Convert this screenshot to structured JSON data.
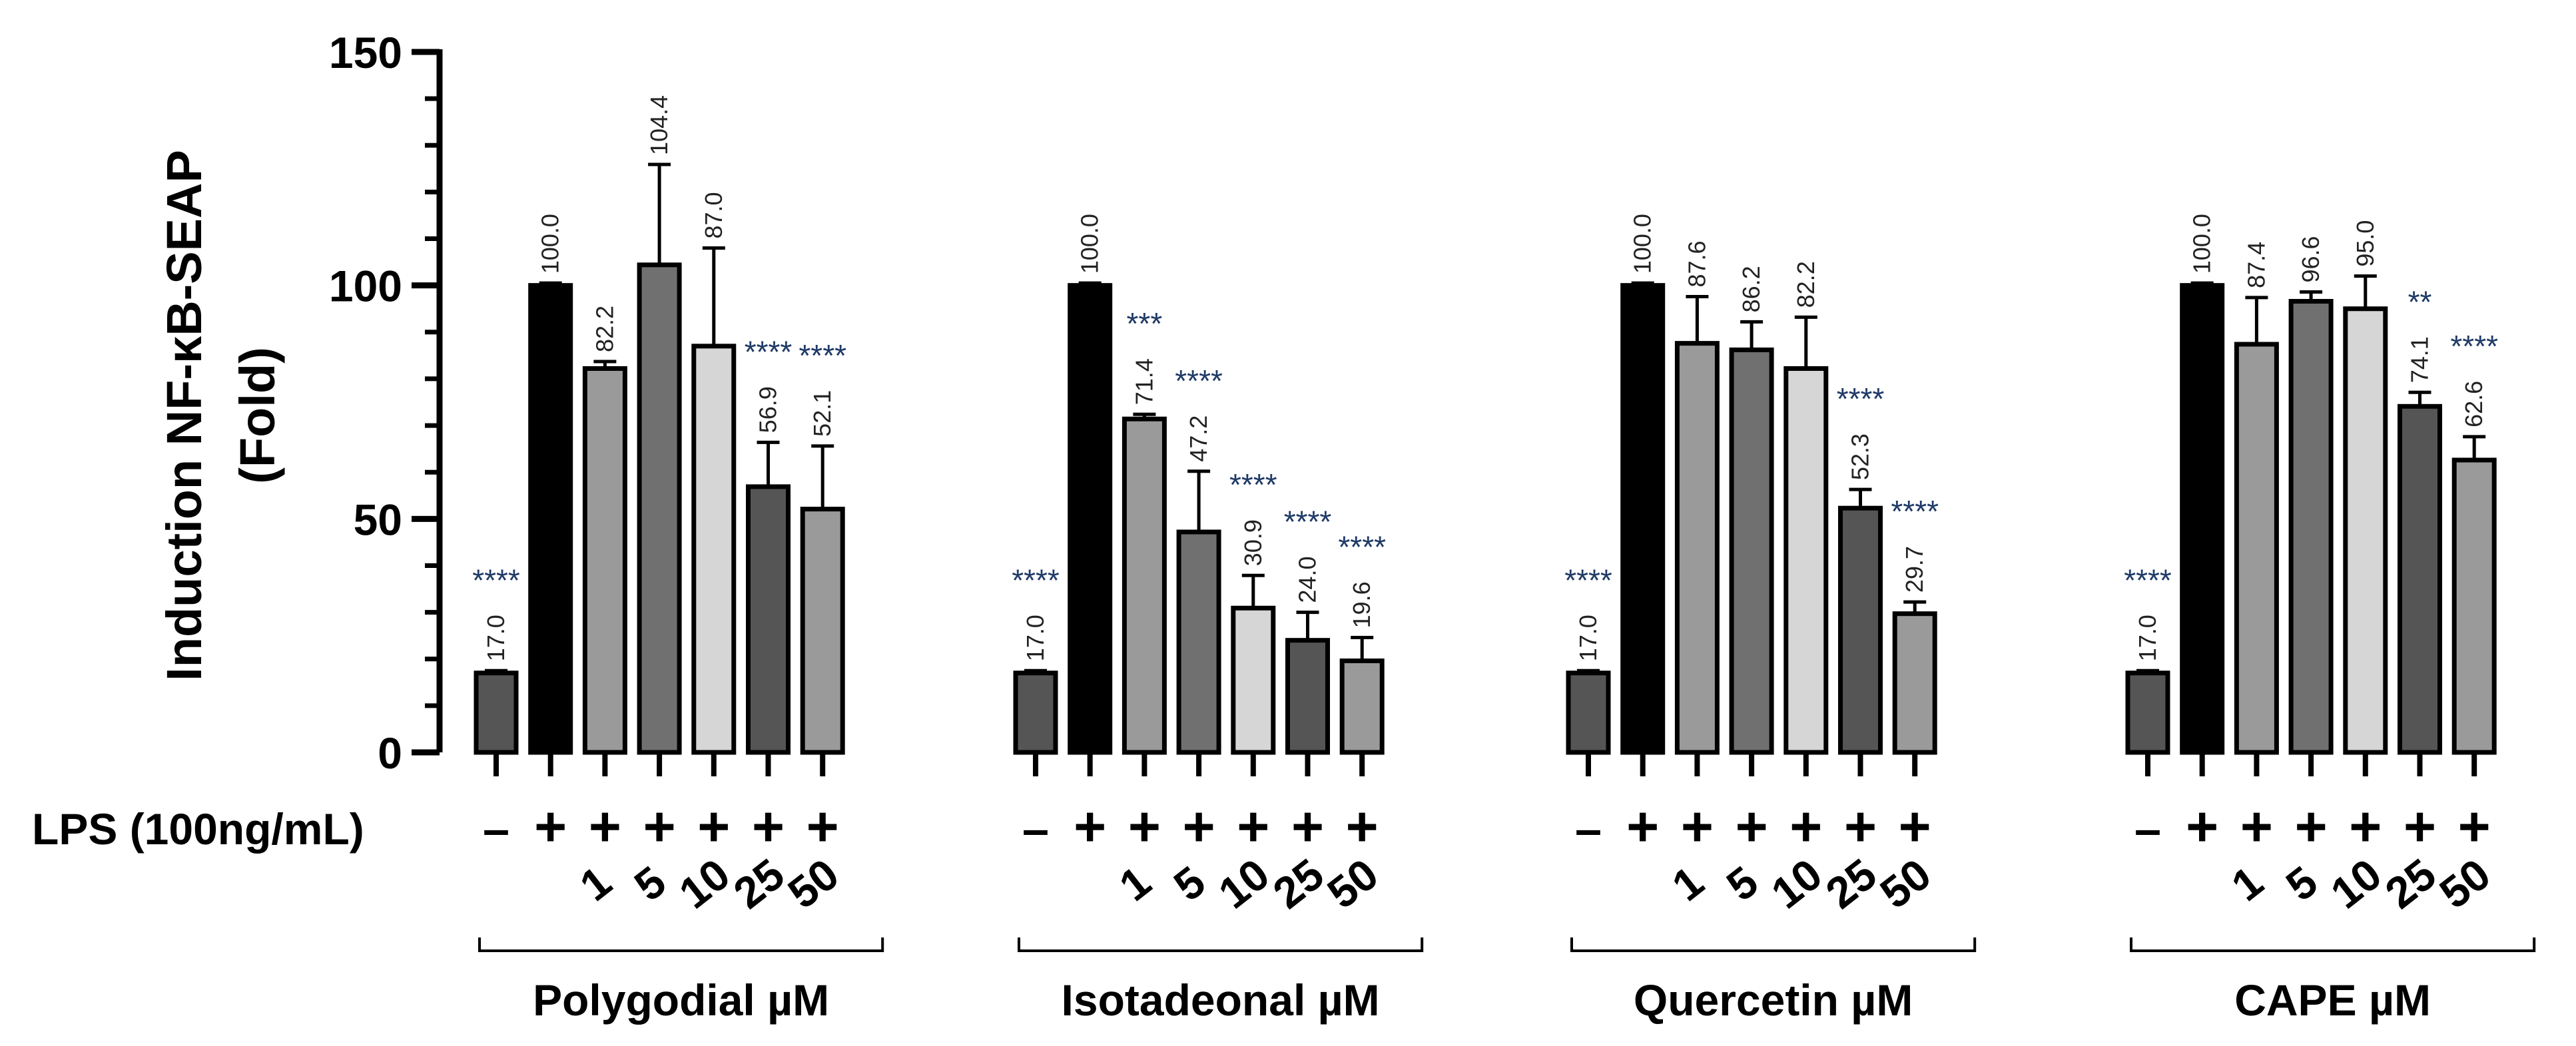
{
  "chart_data": {
    "type": "bar",
    "ylabel_line1": "Induction NF-κB-SEAP",
    "ylabel_line2": "(Fold)",
    "ylim": [
      0,
      150
    ],
    "yticks": [
      "0",
      "50",
      "100",
      "150"
    ],
    "lps_label": "LPS (100ng/mL)",
    "bar_colors": {
      "control": "#555555",
      "lps": "#000000",
      "c1": "#9a9a9a",
      "c5": "#707070",
      "c10": "#d6d6d6",
      "c25": "#555555",
      "c50": "#9a9a9a"
    },
    "groups": [
      {
        "name": "Polygodial µM",
        "bars": [
          {
            "lps": "-",
            "conc": "",
            "value": 17.0,
            "value_label": "17.0",
            "error": 0.5,
            "sig": "****",
            "color_key": "control"
          },
          {
            "lps": "+",
            "conc": "",
            "value": 100.0,
            "value_label": "100.0",
            "error": 0.5,
            "sig": "",
            "color_key": "lps"
          },
          {
            "lps": "+",
            "conc": "1",
            "value": 82.2,
            "value_label": "82.2",
            "error": 1.5,
            "sig": "",
            "color_key": "c1"
          },
          {
            "lps": "+",
            "conc": "5",
            "value": 104.4,
            "value_label": "104.4",
            "error": 21.5,
            "sig": "",
            "color_key": "c5"
          },
          {
            "lps": "+",
            "conc": "10",
            "value": 87.0,
            "value_label": "87.0",
            "error": 21.0,
            "sig": "",
            "color_key": "c10"
          },
          {
            "lps": "+",
            "conc": "25",
            "value": 56.9,
            "value_label": "56.9",
            "error": 9.5,
            "sig": "****",
            "color_key": "c25"
          },
          {
            "lps": "+",
            "conc": "50",
            "value": 52.1,
            "value_label": "52.1",
            "error": 13.5,
            "sig": "****",
            "color_key": "c50"
          }
        ]
      },
      {
        "name": "Isotadeonal µM",
        "bars": [
          {
            "lps": "-",
            "conc": "",
            "value": 17.0,
            "value_label": "17.0",
            "error": 0.5,
            "sig": "****",
            "color_key": "control"
          },
          {
            "lps": "+",
            "conc": "",
            "value": 100.0,
            "value_label": "100.0",
            "error": 0.5,
            "sig": "",
            "color_key": "lps"
          },
          {
            "lps": "+",
            "conc": "1",
            "value": 71.4,
            "value_label": "71.4",
            "error": 1.0,
            "sig": "***",
            "color_key": "c1"
          },
          {
            "lps": "+",
            "conc": "5",
            "value": 47.2,
            "value_label": "47.2",
            "error": 13.0,
            "sig": "****",
            "color_key": "c5"
          },
          {
            "lps": "+",
            "conc": "10",
            "value": 30.9,
            "value_label": "30.9",
            "error": 7.0,
            "sig": "****",
            "color_key": "c10"
          },
          {
            "lps": "+",
            "conc": "25",
            "value": 24.0,
            "value_label": "24.0",
            "error": 6.0,
            "sig": "****",
            "color_key": "c25"
          },
          {
            "lps": "+",
            "conc": "50",
            "value": 19.6,
            "value_label": "19.6",
            "error": 5.0,
            "sig": "****",
            "color_key": "c50"
          }
        ]
      },
      {
        "name": "Quercetin µM",
        "bars": [
          {
            "lps": "-",
            "conc": "",
            "value": 17.0,
            "value_label": "17.0",
            "error": 0.5,
            "sig": "****",
            "color_key": "control"
          },
          {
            "lps": "+",
            "conc": "",
            "value": 100.0,
            "value_label": "100.0",
            "error": 0.5,
            "sig": "",
            "color_key": "lps"
          },
          {
            "lps": "+",
            "conc": "1",
            "value": 87.6,
            "value_label": "87.6",
            "error": 10.0,
            "sig": "",
            "color_key": "c1"
          },
          {
            "lps": "+",
            "conc": "5",
            "value": 86.2,
            "value_label": "86.2",
            "error": 6.0,
            "sig": "",
            "color_key": "c5"
          },
          {
            "lps": "+",
            "conc": "10",
            "value": 82.2,
            "value_label": "82.2",
            "error": 11.0,
            "sig": "",
            "color_key": "c10"
          },
          {
            "lps": "+",
            "conc": "25",
            "value": 52.3,
            "value_label": "52.3",
            "error": 4.0,
            "sig": "****",
            "color_key": "c25"
          },
          {
            "lps": "+",
            "conc": "50",
            "value": 29.7,
            "value_label": "29.7",
            "error": 2.5,
            "sig": "****",
            "color_key": "c50"
          }
        ]
      },
      {
        "name": "CAPE µM",
        "bars": [
          {
            "lps": "-",
            "conc": "",
            "value": 17.0,
            "value_label": "17.0",
            "error": 0.5,
            "sig": "****",
            "color_key": "control"
          },
          {
            "lps": "+",
            "conc": "",
            "value": 100.0,
            "value_label": "100.0",
            "error": 0.5,
            "sig": "",
            "color_key": "lps"
          },
          {
            "lps": "+",
            "conc": "1",
            "value": 87.4,
            "value_label": "87.4",
            "error": 10.0,
            "sig": "",
            "color_key": "c1"
          },
          {
            "lps": "+",
            "conc": "5",
            "value": 96.6,
            "value_label": "96.6",
            "error": 2.0,
            "sig": "",
            "color_key": "c5"
          },
          {
            "lps": "+",
            "conc": "10",
            "value": 95.0,
            "value_label": "95.0",
            "error": 7.0,
            "sig": "",
            "color_key": "c10"
          },
          {
            "lps": "+",
            "conc": "25",
            "value": 74.1,
            "value_label": "74.1",
            "error": 3.0,
            "sig": "**",
            "color_key": "c25"
          },
          {
            "lps": "+",
            "conc": "50",
            "value": 62.6,
            "value_label": "62.6",
            "error": 5.0,
            "sig": "****",
            "color_key": "c50"
          }
        ]
      }
    ]
  }
}
